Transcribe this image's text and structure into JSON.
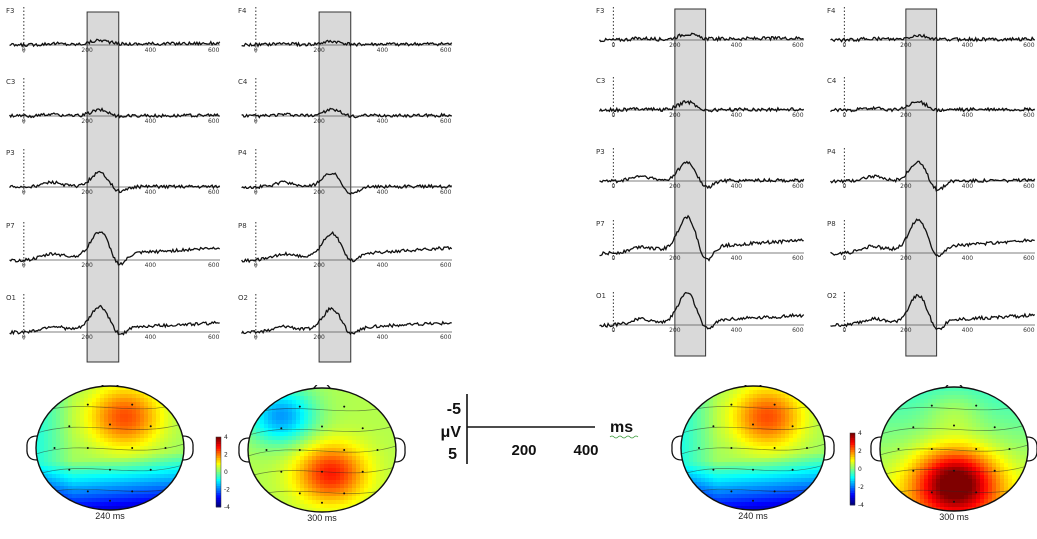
{
  "colors": {
    "waveform": "#111111",
    "baseline": "#555555",
    "highlight_fill": "#d9d9d9",
    "highlight_stroke": "#333333",
    "colormap": "jet"
  },
  "chart_data": [
    {
      "type": "line",
      "panel": "left-erp-grid",
      "x_unit": "ms",
      "xlim": [
        -50,
        620
      ],
      "x_ticks": [
        "0",
        "200",
        "400",
        "600"
      ],
      "highlight_window_ms": [
        200,
        300
      ],
      "columns": [
        {
          "channels": [
            "F3",
            "C3",
            "P3",
            "P7",
            "O1"
          ]
        },
        {
          "channels": [
            "F4",
            "C4",
            "P4",
            "P8",
            "O2"
          ]
        }
      ]
    },
    {
      "type": "line",
      "panel": "right-erp-grid",
      "x_unit": "ms",
      "xlim": [
        -50,
        620
      ],
      "x_ticks": [
        "0",
        "200",
        "400",
        "600"
      ],
      "highlight_window_ms": [
        200,
        300
      ],
      "columns": [
        {
          "channels": [
            "F3",
            "C3",
            "P3",
            "P7",
            "O1"
          ]
        },
        {
          "channels": [
            "F4",
            "C4",
            "P4",
            "P8",
            "O2"
          ]
        }
      ]
    },
    {
      "type": "heatmap",
      "panel": "left-topomaps",
      "colorbar_ticks": [
        "4",
        "2",
        "0",
        "-2",
        "-4"
      ],
      "maps": [
        {
          "label": "240 ms",
          "pattern": "frontal-positive"
        },
        {
          "label": "300 ms",
          "pattern": "parietal-positive"
        }
      ]
    },
    {
      "type": "heatmap",
      "panel": "right-topomaps",
      "colorbar_ticks": [
        "4",
        "2",
        "0",
        "-2",
        "-4"
      ],
      "maps": [
        {
          "label": "240 ms",
          "pattern": "frontal-positive"
        },
        {
          "label": "300 ms",
          "pattern": "parietal-strong"
        }
      ]
    }
  ],
  "scale_legend": {
    "y_top": "-5",
    "y_unit": "μV",
    "y_bottom": "5",
    "x_tick_1": "200",
    "x_tick_2": "400",
    "x_unit": "ms"
  }
}
